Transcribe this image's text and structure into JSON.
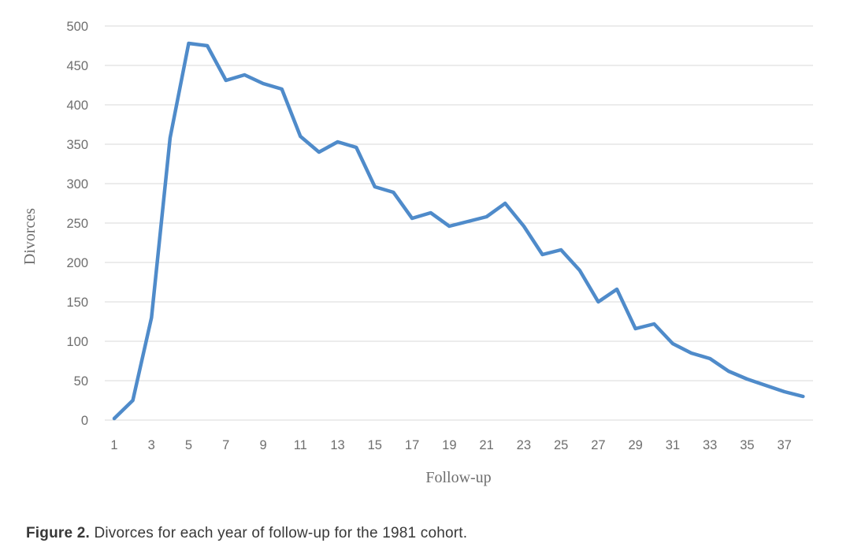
{
  "figure_caption": {
    "label": "Figure 2.",
    "text": " Divorces for each year of follow-up for the 1981 cohort."
  },
  "chart_data": {
    "type": "line",
    "title": "",
    "xlabel": "Follow-up",
    "ylabel": "Divorces",
    "series_name": "Divorces",
    "x": [
      1,
      2,
      3,
      4,
      5,
      6,
      7,
      8,
      9,
      10,
      11,
      12,
      13,
      14,
      15,
      16,
      17,
      18,
      19,
      20,
      21,
      22,
      23,
      24,
      25,
      26,
      27,
      28,
      29,
      30,
      31,
      32,
      33,
      34,
      35,
      36,
      37,
      38
    ],
    "values": [
      2,
      25,
      130,
      358,
      478,
      475,
      431,
      438,
      427,
      420,
      360,
      340,
      353,
      346,
      296,
      289,
      256,
      263,
      246,
      252,
      258,
      275,
      246,
      210,
      216,
      190,
      150,
      166,
      116,
      122,
      97,
      85,
      78,
      62,
      52,
      44,
      36,
      30
    ],
    "ylim": [
      0,
      500
    ],
    "ytick_step": 50,
    "yticks": [
      0,
      50,
      100,
      150,
      200,
      250,
      300,
      350,
      400,
      450,
      500
    ],
    "xticks": [
      1,
      3,
      5,
      7,
      9,
      11,
      13,
      15,
      17,
      19,
      21,
      23,
      25,
      27,
      29,
      31,
      33,
      35,
      37
    ],
    "grid": "horizontal-major",
    "legend": "none",
    "colors": {
      "line": "#4f8bca",
      "grid": "#d9d9d9",
      "tick_text": "#6e6e6e",
      "axis_title_text": "#6e6e6e"
    }
  }
}
